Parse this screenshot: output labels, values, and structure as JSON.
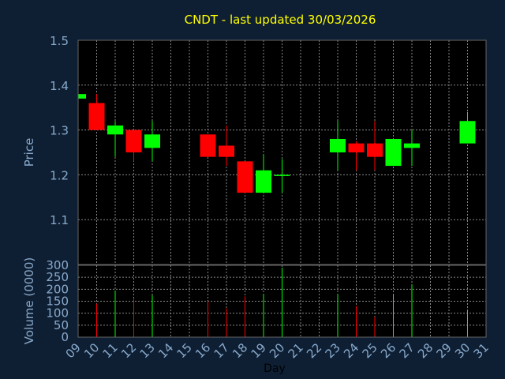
{
  "chart_data": {
    "type": "candlestick",
    "title": "CNDT - last updated 30/03/2026",
    "xlabel": "Day",
    "price_panel": {
      "ylabel": "Price",
      "ylim": [
        1.0,
        1.5
      ],
      "yticks": [
        "1.1",
        "1.2",
        "1.3",
        "1.4",
        "1.5"
      ]
    },
    "volume_panel": {
      "ylabel": "Volume (0000)",
      "ylim": [
        0,
        300
      ],
      "yticks": [
        "0",
        "50",
        "100",
        "150",
        "200",
        "250",
        "300"
      ]
    },
    "x_ticks": [
      "09",
      "10",
      "11",
      "12",
      "13",
      "14",
      "15",
      "16",
      "17",
      "18",
      "19",
      "20",
      "21",
      "22",
      "23",
      "24",
      "25",
      "26",
      "27",
      "28",
      "29",
      "30",
      "31"
    ],
    "grid": true,
    "colors": {
      "background": "#0f1f33",
      "plot_background": "#000000",
      "up": "#00ff00",
      "down": "#ff0000",
      "title": "#ffff00",
      "axis_text": "#88aacc",
      "grid": "#888888"
    },
    "candles": [
      {
        "day": 9,
        "open": 1.37,
        "high": 1.38,
        "low": 1.37,
        "close": 1.38
      },
      {
        "day": 10,
        "open": 1.36,
        "high": 1.38,
        "low": 1.3,
        "close": 1.3
      },
      {
        "day": 11,
        "open": 1.29,
        "high": 1.32,
        "low": 1.24,
        "close": 1.31
      },
      {
        "day": 12,
        "open": 1.3,
        "high": 1.3,
        "low": 1.23,
        "close": 1.25
      },
      {
        "day": 13,
        "open": 1.26,
        "high": 1.32,
        "low": 1.23,
        "close": 1.29
      },
      {
        "day": 16,
        "open": 1.29,
        "high": 1.29,
        "low": 1.24,
        "close": 1.24
      },
      {
        "day": 17,
        "open": 1.265,
        "high": 1.31,
        "low": 1.22,
        "close": 1.24
      },
      {
        "day": 18,
        "open": 1.23,
        "high": 1.23,
        "low": 1.16,
        "close": 1.16
      },
      {
        "day": 19,
        "open": 1.16,
        "high": 1.245,
        "low": 1.16,
        "close": 1.21
      },
      {
        "day": 20,
        "open": 1.2,
        "high": 1.235,
        "low": 1.16,
        "close": 1.2
      },
      {
        "day": 23,
        "open": 1.25,
        "high": 1.32,
        "low": 1.21,
        "close": 1.28
      },
      {
        "day": 24,
        "open": 1.27,
        "high": 1.275,
        "low": 1.21,
        "close": 1.25
      },
      {
        "day": 25,
        "open": 1.27,
        "high": 1.32,
        "low": 1.21,
        "close": 1.24
      },
      {
        "day": 26,
        "open": 1.22,
        "high": 1.28,
        "low": 1.22,
        "close": 1.28
      },
      {
        "day": 27,
        "open": 1.26,
        "high": 1.3,
        "low": 1.22,
        "close": 1.27
      },
      {
        "day": 30,
        "open": 1.27,
        "high": 1.34,
        "low": 1.27,
        "close": 1.32
      }
    ],
    "volume": [
      {
        "day": 10,
        "value": 140,
        "dir": "down"
      },
      {
        "day": 11,
        "value": 195,
        "dir": "up"
      },
      {
        "day": 12,
        "value": 160,
        "dir": "down"
      },
      {
        "day": 13,
        "value": 175,
        "dir": "up"
      },
      {
        "day": 16,
        "value": 150,
        "dir": "down"
      },
      {
        "day": 17,
        "value": 120,
        "dir": "down"
      },
      {
        "day": 18,
        "value": 170,
        "dir": "down"
      },
      {
        "day": 19,
        "value": 180,
        "dir": "up"
      },
      {
        "day": 20,
        "value": 290,
        "dir": "up"
      },
      {
        "day": 23,
        "value": 180,
        "dir": "up"
      },
      {
        "day": 24,
        "value": 130,
        "dir": "down"
      },
      {
        "day": 25,
        "value": 85,
        "dir": "down"
      },
      {
        "day": 26,
        "value": 180,
        "dir": "up"
      },
      {
        "day": 27,
        "value": 220,
        "dir": "up"
      },
      {
        "day": 30,
        "value": 110,
        "dir": "up"
      }
    ]
  }
}
